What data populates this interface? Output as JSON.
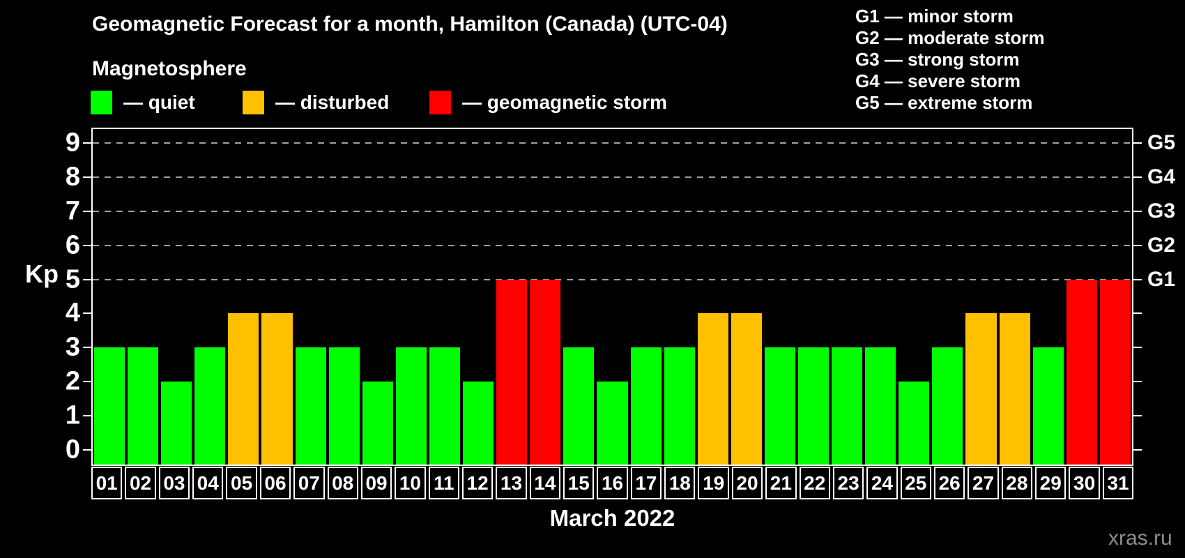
{
  "header": {
    "title": "Geomagnetic Forecast for a month, Hamilton (Canada) (UTC-04)",
    "subtitle": "Magnetosphere"
  },
  "legend": {
    "items": [
      {
        "name": "quiet",
        "label": "— quiet",
        "color": "#00ff00"
      },
      {
        "name": "disturbed",
        "label": "— disturbed",
        "color": "#ffc000"
      },
      {
        "name": "storm",
        "label": "— geomagnetic storm",
        "color": "#ff0000"
      }
    ]
  },
  "g_legend": {
    "items": [
      "G1 — minor storm",
      "G2 — moderate storm",
      "G3 — strong storm",
      "G4 — severe storm",
      "G5 — extreme storm"
    ]
  },
  "watermark": "xras.ru",
  "chart_data": {
    "type": "bar",
    "title": "Geomagnetic Forecast for a month, Hamilton (Canada) (UTC-04)",
    "xlabel": "March 2022",
    "ylabel": "Kp",
    "ylim": [
      0,
      9
    ],
    "y_ticks": [
      0,
      1,
      2,
      3,
      4,
      5,
      6,
      7,
      8,
      9
    ],
    "gridlines_at": [
      5,
      6,
      7,
      8,
      9
    ],
    "right_axis_labels": [
      {
        "kp": 5,
        "label": "G1"
      },
      {
        "kp": 6,
        "label": "G2"
      },
      {
        "kp": 7,
        "label": "G3"
      },
      {
        "kp": 8,
        "label": "G4"
      },
      {
        "kp": 9,
        "label": "G5"
      }
    ],
    "categories": [
      "01",
      "02",
      "03",
      "04",
      "05",
      "06",
      "07",
      "08",
      "09",
      "10",
      "11",
      "12",
      "13",
      "14",
      "15",
      "16",
      "17",
      "18",
      "19",
      "20",
      "21",
      "22",
      "23",
      "24",
      "25",
      "26",
      "27",
      "28",
      "29",
      "30",
      "31"
    ],
    "values": [
      3,
      3,
      2,
      3,
      4,
      4,
      3,
      3,
      2,
      3,
      3,
      2,
      5,
      5,
      3,
      2,
      3,
      3,
      4,
      4,
      3,
      3,
      3,
      3,
      2,
      3,
      4,
      4,
      3,
      5,
      5
    ],
    "statuses": [
      "quiet",
      "quiet",
      "quiet",
      "quiet",
      "disturbed",
      "disturbed",
      "quiet",
      "quiet",
      "quiet",
      "quiet",
      "quiet",
      "quiet",
      "storm",
      "storm",
      "quiet",
      "quiet",
      "quiet",
      "quiet",
      "disturbed",
      "disturbed",
      "quiet",
      "quiet",
      "quiet",
      "quiet",
      "quiet",
      "quiet",
      "disturbed",
      "disturbed",
      "quiet",
      "storm",
      "storm"
    ],
    "colors": {
      "quiet": "#00ff00",
      "disturbed": "#ffc000",
      "storm": "#ff0000"
    },
    "legend_position": "top-left",
    "grid": "dashed-horizontal"
  }
}
